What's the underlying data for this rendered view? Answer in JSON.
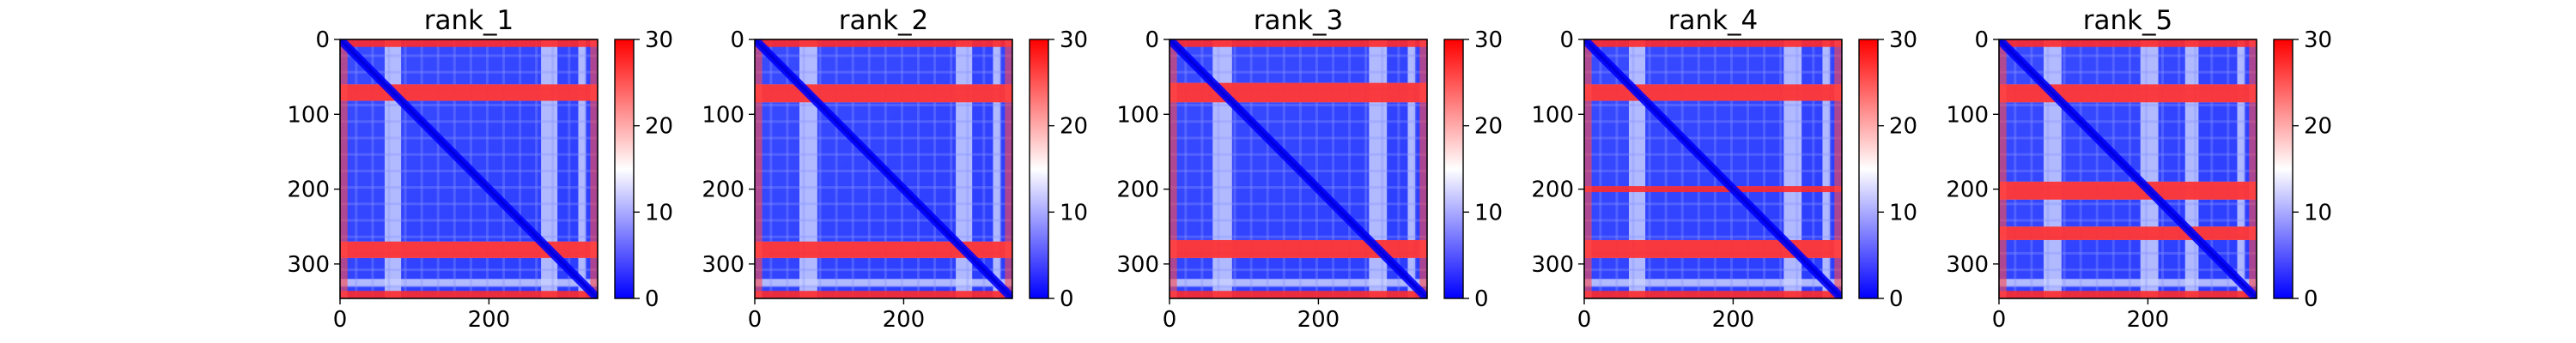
{
  "figure": {
    "panel_titles": [
      "rank_1",
      "rank_2",
      "rank_3",
      "rank_4",
      "rank_5"
    ]
  },
  "chart_data": [
    {
      "type": "heatmap",
      "title": "rank_1",
      "x_ticks": [
        0,
        200
      ],
      "y_ticks": [
        0,
        100,
        200,
        300
      ],
      "xlim": [
        0,
        346
      ],
      "ylim": [
        346,
        0
      ],
      "colorbar": {
        "ticks": [
          0,
          10,
          20,
          30
        ],
        "range": [
          0,
          30
        ],
        "colors": [
          "#0000ff",
          "#ffffff",
          "#ff0000"
        ]
      },
      "red_bands": [
        [
          0,
          10
        ],
        [
          60,
          82
        ],
        [
          270,
          292
        ],
        [
          336,
          346
        ]
      ],
      "white_stripes": [
        [
          60,
          82
        ],
        [
          270,
          292
        ],
        [
          320,
          330
        ]
      ]
    },
    {
      "type": "heatmap",
      "title": "rank_2",
      "x_ticks": [
        0,
        200
      ],
      "y_ticks": [
        0,
        100,
        200,
        300
      ],
      "xlim": [
        0,
        346
      ],
      "ylim": [
        346,
        0
      ],
      "colorbar": {
        "ticks": [
          0,
          10,
          20,
          30
        ],
        "range": [
          0,
          30
        ],
        "colors": [
          "#0000ff",
          "#ffffff",
          "#ff0000"
        ]
      },
      "red_bands": [
        [
          0,
          10
        ],
        [
          60,
          84
        ],
        [
          270,
          292
        ],
        [
          336,
          346
        ]
      ],
      "white_stripes": [
        [
          60,
          84
        ],
        [
          270,
          292
        ],
        [
          320,
          330
        ]
      ]
    },
    {
      "type": "heatmap",
      "title": "rank_3",
      "x_ticks": [
        0,
        200
      ],
      "y_ticks": [
        0,
        100,
        200,
        300
      ],
      "xlim": [
        0,
        346
      ],
      "ylim": [
        346,
        0
      ],
      "colorbar": {
        "ticks": [
          0,
          10,
          20,
          30
        ],
        "range": [
          0,
          30
        ],
        "colors": [
          "#0000ff",
          "#ffffff",
          "#ff0000"
        ]
      },
      "red_bands": [
        [
          0,
          10
        ],
        [
          58,
          84
        ],
        [
          268,
          292
        ],
        [
          336,
          346
        ]
      ],
      "white_stripes": [
        [
          58,
          84
        ],
        [
          268,
          292
        ],
        [
          320,
          330
        ]
      ]
    },
    {
      "type": "heatmap",
      "title": "rank_4",
      "x_ticks": [
        0,
        200
      ],
      "y_ticks": [
        0,
        100,
        200,
        300
      ],
      "xlim": [
        0,
        346
      ],
      "ylim": [
        346,
        0
      ],
      "colorbar": {
        "ticks": [
          0,
          10,
          20,
          30
        ],
        "range": [
          0,
          30
        ],
        "colors": [
          "#0000ff",
          "#ffffff",
          "#ff0000"
        ]
      },
      "red_bands": [
        [
          0,
          10
        ],
        [
          60,
          82
        ],
        [
          196,
          204
        ],
        [
          268,
          292
        ],
        [
          336,
          346
        ]
      ],
      "white_stripes": [
        [
          60,
          82
        ],
        [
          268,
          292
        ],
        [
          320,
          330
        ]
      ]
    },
    {
      "type": "heatmap",
      "title": "rank_5",
      "x_ticks": [
        0,
        200
      ],
      "y_ticks": [
        0,
        100,
        200,
        300
      ],
      "xlim": [
        0,
        346
      ],
      "ylim": [
        346,
        0
      ],
      "colorbar": {
        "ticks": [
          0,
          10,
          20,
          30
        ],
        "range": [
          0,
          30
        ],
        "colors": [
          "#0000ff",
          "#ffffff",
          "#ff0000"
        ]
      },
      "red_bands": [
        [
          0,
          10
        ],
        [
          60,
          84
        ],
        [
          190,
          214
        ],
        [
          250,
          268
        ],
        [
          336,
          346
        ]
      ],
      "white_stripes": [
        [
          60,
          84
        ],
        [
          190,
          214
        ],
        [
          250,
          268
        ],
        [
          320,
          330
        ]
      ]
    }
  ]
}
